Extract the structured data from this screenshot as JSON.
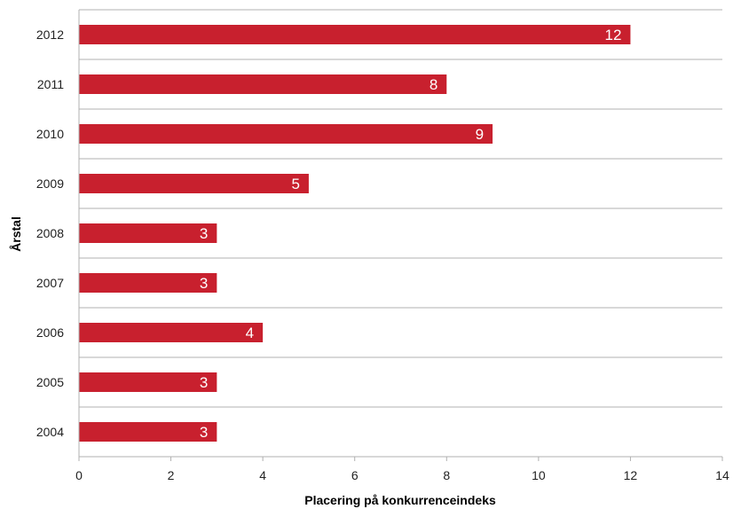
{
  "chart_data": {
    "type": "bar",
    "orientation": "horizontal",
    "categories": [
      "2012",
      "2011",
      "2010",
      "2009",
      "2008",
      "2007",
      "2006",
      "2005",
      "2004"
    ],
    "values": [
      12,
      8,
      9,
      5,
      3,
      3,
      4,
      3,
      3
    ],
    "xlabel": "Placering på konkurrenceindeks",
    "ylabel": "Årstal",
    "xlim": [
      0,
      14
    ],
    "xticks": [
      0,
      2,
      4,
      6,
      8,
      10,
      12,
      14
    ],
    "grid": "horizontal separators between categories",
    "legend": "none",
    "data_labels": true
  },
  "colors": {
    "bar": "#c8202e",
    "grid": "#b0b0b0",
    "bar_label": "#ffffff"
  }
}
